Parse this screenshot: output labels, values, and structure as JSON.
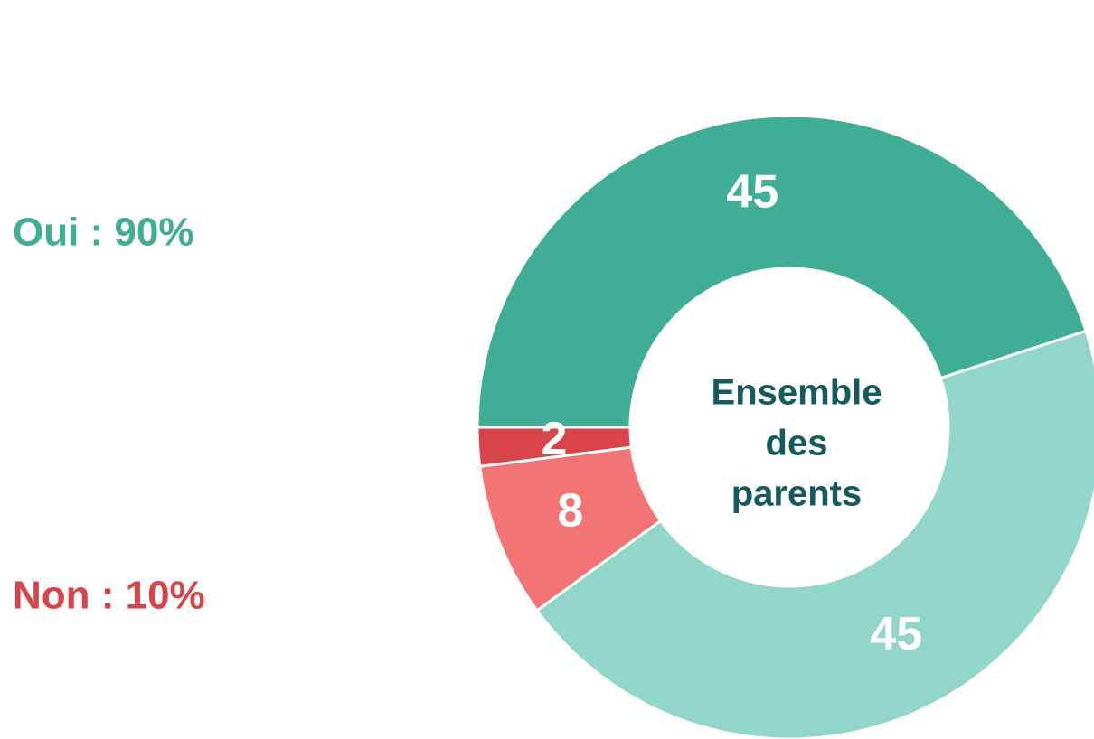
{
  "chart_data": {
    "type": "donut",
    "values": [
      45,
      45,
      8,
      2
    ],
    "colors": [
      "#40ae96",
      "#91d6c8",
      "#f27475",
      "#d9444b"
    ],
    "center_label": [
      "Ensemble",
      "des",
      "parents"
    ],
    "center_label_color": "#155a5e",
    "annotations": [
      {
        "text": "Oui : 90%",
        "color": "#40ae96"
      },
      {
        "text": "Non : 10%",
        "color": "#d9444b"
      }
    ]
  }
}
